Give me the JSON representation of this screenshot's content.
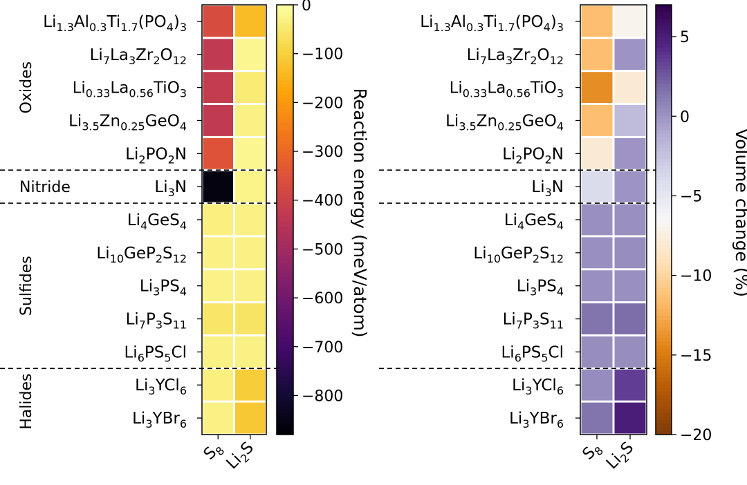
{
  "chart_data": [
    {
      "type": "heatmap",
      "columns": [
        {
          "base": "S",
          "sub": "8",
          "rest": ""
        },
        {
          "base": "Li",
          "sub": "2",
          "rest": "S"
        }
      ],
      "rows": [
        [
          [
            "Li",
            ""
          ],
          [
            "1.3",
            "sub"
          ],
          [
            "Al",
            ""
          ],
          [
            "0.3",
            "sub"
          ],
          [
            "Ti",
            ""
          ],
          [
            "1.7",
            "sub"
          ],
          [
            "(PO",
            ""
          ],
          [
            "4",
            "sub"
          ],
          [
            ")",
            ""
          ],
          [
            "3",
            "sub"
          ]
        ],
        [
          [
            "Li",
            ""
          ],
          [
            "7",
            "sub"
          ],
          [
            "La",
            ""
          ],
          [
            "3",
            "sub"
          ],
          [
            "Zr",
            ""
          ],
          [
            "2",
            "sub"
          ],
          [
            "O",
            ""
          ],
          [
            "12",
            "sub"
          ]
        ],
        [
          [
            "Li",
            ""
          ],
          [
            "0.33",
            "sub"
          ],
          [
            "La",
            ""
          ],
          [
            "0.56",
            "sub"
          ],
          [
            "TiO",
            ""
          ],
          [
            "3",
            "sub"
          ]
        ],
        [
          [
            "Li",
            ""
          ],
          [
            "3.5",
            "sub"
          ],
          [
            "Zn",
            ""
          ],
          [
            "0.25",
            "sub"
          ],
          [
            "GeO",
            ""
          ],
          [
            "4",
            "sub"
          ]
        ],
        [
          [
            "Li",
            ""
          ],
          [
            "2",
            "sub"
          ],
          [
            "PO",
            ""
          ],
          [
            "2",
            "sub"
          ],
          [
            "N",
            ""
          ]
        ],
        [
          [
            "Li",
            ""
          ],
          [
            "3",
            "sub"
          ],
          [
            "N",
            ""
          ]
        ],
        [
          [
            "Li",
            ""
          ],
          [
            "4",
            "sub"
          ],
          [
            "GeS",
            ""
          ],
          [
            "4",
            "sub"
          ]
        ],
        [
          [
            "Li",
            ""
          ],
          [
            "10",
            "sub"
          ],
          [
            "GeP",
            ""
          ],
          [
            "2",
            "sub"
          ],
          [
            "S",
            ""
          ],
          [
            "12",
            "sub"
          ]
        ],
        [
          [
            "Li",
            ""
          ],
          [
            "3",
            "sub"
          ],
          [
            "PS",
            ""
          ],
          [
            "4",
            "sub"
          ]
        ],
        [
          [
            "Li",
            ""
          ],
          [
            "7",
            "sub"
          ],
          [
            "P",
            ""
          ],
          [
            "3",
            "sub"
          ],
          [
            "S",
            ""
          ],
          [
            "11",
            "sub"
          ]
        ],
        [
          [
            "Li",
            ""
          ],
          [
            "6",
            "sub"
          ],
          [
            "PS",
            ""
          ],
          [
            "5",
            "sub"
          ],
          [
            "Cl",
            ""
          ]
        ],
        [
          [
            "Li",
            ""
          ],
          [
            "3",
            "sub"
          ],
          [
            "YCl",
            ""
          ],
          [
            "6",
            "sub"
          ]
        ],
        [
          [
            "Li",
            ""
          ],
          [
            "3",
            "sub"
          ],
          [
            "YBr",
            ""
          ],
          [
            "6",
            "sub"
          ]
        ]
      ],
      "groups": [
        {
          "name": "Oxides",
          "rows": [
            0,
            4
          ]
        },
        {
          "name": "Nitride",
          "rows": [
            5,
            5
          ]
        },
        {
          "name": "Sulfides",
          "rows": [
            6,
            10
          ]
        },
        {
          "name": "Halides",
          "rows": [
            11,
            12
          ]
        }
      ],
      "group_separators_after_rows": [
        4,
        5,
        10
      ],
      "values": [
        [
          -370,
          -135
        ],
        [
          -430,
          -20
        ],
        [
          -420,
          -45
        ],
        [
          -430,
          -30
        ],
        [
          -350,
          -20
        ],
        [
          -860,
          -25
        ],
        [
          -35,
          -30
        ],
        [
          -30,
          -30
        ],
        [
          -28,
          -30
        ],
        [
          -55,
          -60
        ],
        [
          -30,
          -30
        ],
        [
          -35,
          -105
        ],
        [
          -30,
          -115
        ]
      ],
      "colorbar": {
        "label": "Reaction energy (meV/atom)",
        "colormap": "inferno",
        "range": [
          -880,
          0
        ],
        "ticks": [
          0,
          -100,
          -200,
          -300,
          -400,
          -500,
          -600,
          -700,
          -800
        ],
        "tick_labels": [
          "0",
          "−100",
          "−200",
          "−300",
          "−400",
          "−500",
          "−600",
          "−700",
          "−800"
        ]
      }
    },
    {
      "type": "heatmap",
      "columns": [
        {
          "base": "S",
          "sub": "8",
          "rest": ""
        },
        {
          "base": "Li",
          "sub": "2",
          "rest": "S"
        }
      ],
      "rows": [
        [
          [
            "Li",
            ""
          ],
          [
            "1.3",
            "sub"
          ],
          [
            "Al",
            ""
          ],
          [
            "0.3",
            "sub"
          ],
          [
            "Ti",
            ""
          ],
          [
            "1.7",
            "sub"
          ],
          [
            "(PO",
            ""
          ],
          [
            "4",
            "sub"
          ],
          [
            ")",
            ""
          ],
          [
            "3",
            "sub"
          ]
        ],
        [
          [
            "Li",
            ""
          ],
          [
            "7",
            "sub"
          ],
          [
            "La",
            ""
          ],
          [
            "3",
            "sub"
          ],
          [
            "Zr",
            ""
          ],
          [
            "2",
            "sub"
          ],
          [
            "O",
            ""
          ],
          [
            "12",
            "sub"
          ]
        ],
        [
          [
            "Li",
            ""
          ],
          [
            "0.33",
            "sub"
          ],
          [
            "La",
            ""
          ],
          [
            "0.56",
            "sub"
          ],
          [
            "TiO",
            ""
          ],
          [
            "3",
            "sub"
          ]
        ],
        [
          [
            "Li",
            ""
          ],
          [
            "3.5",
            "sub"
          ],
          [
            "Zn",
            ""
          ],
          [
            "0.25",
            "sub"
          ],
          [
            "GeO",
            ""
          ],
          [
            "4",
            "sub"
          ]
        ],
        [
          [
            "Li",
            ""
          ],
          [
            "2",
            "sub"
          ],
          [
            "PO",
            ""
          ],
          [
            "2",
            "sub"
          ],
          [
            "N",
            ""
          ]
        ],
        [
          [
            "Li",
            ""
          ],
          [
            "3",
            "sub"
          ],
          [
            "N",
            ""
          ]
        ],
        [
          [
            "Li",
            ""
          ],
          [
            "4",
            "sub"
          ],
          [
            "GeS",
            ""
          ],
          [
            "4",
            "sub"
          ]
        ],
        [
          [
            "Li",
            ""
          ],
          [
            "10",
            "sub"
          ],
          [
            "GeP",
            ""
          ],
          [
            "2",
            "sub"
          ],
          [
            "S",
            ""
          ],
          [
            "12",
            "sub"
          ]
        ],
        [
          [
            "Li",
            ""
          ],
          [
            "3",
            "sub"
          ],
          [
            "PS",
            ""
          ],
          [
            "4",
            "sub"
          ]
        ],
        [
          [
            "Li",
            ""
          ],
          [
            "7",
            "sub"
          ],
          [
            "P",
            ""
          ],
          [
            "3",
            "sub"
          ],
          [
            "S",
            ""
          ],
          [
            "11",
            "sub"
          ]
        ],
        [
          [
            "Li",
            ""
          ],
          [
            "6",
            "sub"
          ],
          [
            "PS",
            ""
          ],
          [
            "5",
            "sub"
          ],
          [
            "Cl",
            ""
          ]
        ],
        [
          [
            "Li",
            ""
          ],
          [
            "3",
            "sub"
          ],
          [
            "YCl",
            ""
          ],
          [
            "6",
            "sub"
          ]
        ],
        [
          [
            "Li",
            ""
          ],
          [
            "3",
            "sub"
          ],
          [
            "YBr",
            ""
          ],
          [
            "6",
            "sub"
          ]
        ]
      ],
      "group_separators_after_rows": [
        4,
        5,
        10
      ],
      "values": [
        [
          -11.5,
          -7.0
        ],
        [
          -11.5,
          0.0
        ],
        [
          -14.0,
          -8.0
        ],
        [
          -11.5,
          -2.0
        ],
        [
          -8.0,
          0.0
        ],
        [
          -4.0,
          0.0
        ],
        [
          0.2,
          0.2
        ],
        [
          0.2,
          0.3
        ],
        [
          0.2,
          0.2
        ],
        [
          1.5,
          1.8
        ],
        [
          0.3,
          0.3
        ],
        [
          0.4,
          3.5
        ],
        [
          1.5,
          5.0
        ]
      ],
      "colorbar": {
        "label": "Volume change (%)",
        "colormap": "PuOr",
        "range": [
          -20,
          7
        ],
        "ticks": [
          5,
          0,
          -5,
          -10,
          -15,
          -20
        ],
        "tick_labels": [
          "5",
          "0",
          "−5",
          "−10",
          "−15",
          "−20"
        ]
      }
    }
  ]
}
